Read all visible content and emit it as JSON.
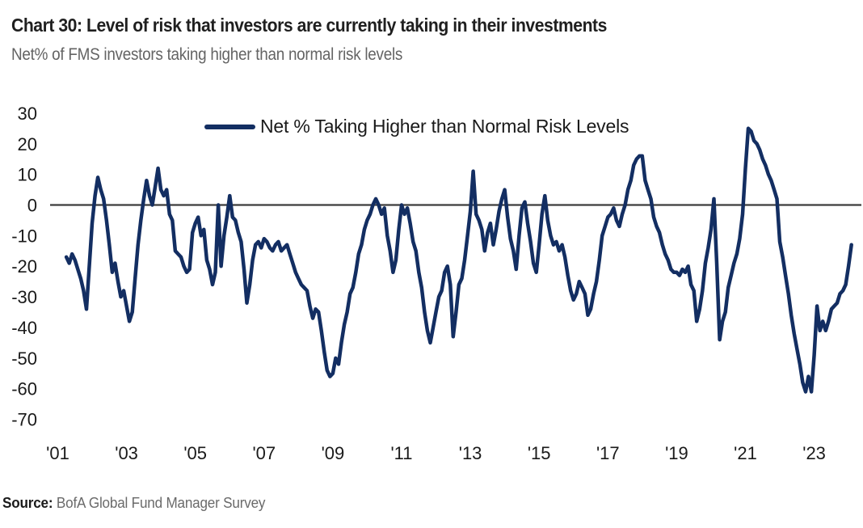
{
  "header": {
    "title": "Chart 30: Level of risk that investors are currently taking in their investments",
    "subtitle": "Net% of FMS investors taking higher than normal risk levels"
  },
  "legend": {
    "label": "Net % Taking Higher than Normal Risk Levels",
    "line_color": "#132E62"
  },
  "footer": {
    "source_label": "Source:",
    "source_text": " BofA Global Fund Manager Survey"
  },
  "chart_data": {
    "type": "line",
    "title": "Chart 30: Level of risk that investors are currently taking in their investments",
    "subtitle": "Net% of FMS investors taking higher than normal risk levels",
    "xlabel": "",
    "ylabel": "",
    "ylim": [
      -70,
      30
    ],
    "y_ticks": [
      30,
      20,
      10,
      0,
      -10,
      -20,
      -30,
      -40,
      -50,
      -60,
      -70
    ],
    "x_tick_labels": [
      "'01",
      "'03",
      "'05",
      "'07",
      "'09",
      "'11",
      "'13",
      "'15",
      "'17",
      "'19",
      "'21",
      "'23"
    ],
    "x_tick_years": [
      2001,
      2003,
      2005,
      2007,
      2009,
      2011,
      2013,
      2015,
      2017,
      2019,
      2021,
      2023
    ],
    "zero_line": true,
    "grid": false,
    "legend_position": "top-center",
    "zero_line_color": "#3C3C3C",
    "series": [
      {
        "name": "Net % Taking Higher than Normal Risk Levels",
        "color": "#132E62",
        "frequency": "monthly",
        "start": "2001-04",
        "end": "2024-02",
        "values": [
          -17,
          -19,
          -16,
          -18,
          -21,
          -24,
          -28,
          -34,
          -20,
          -6,
          3,
          9,
          5,
          2,
          -5,
          -13,
          -22,
          -19,
          -25,
          -30,
          -28,
          -33,
          -38,
          -35,
          -24,
          -13,
          -5,
          2,
          8,
          3,
          0,
          6,
          12,
          5,
          3,
          5,
          -3,
          -5,
          -15,
          -16,
          -17,
          -20,
          -22,
          -21,
          -9,
          -6,
          -4,
          -10,
          -8,
          -18,
          -21,
          -26,
          -22,
          0,
          -20,
          -10,
          -4,
          3,
          -4,
          -5,
          -9,
          -12,
          -21,
          -32,
          -26,
          -18,
          -13,
          -12,
          -14,
          -11,
          -12,
          -14,
          -15,
          -13,
          -12,
          -15,
          -14,
          -13,
          -16,
          -19,
          -22,
          -24,
          -26,
          -27,
          -28,
          -33,
          -37,
          -34,
          -35,
          -41,
          -48,
          -54,
          -56,
          -55,
          -50,
          -52,
          -45,
          -39,
          -35,
          -29,
          -27,
          -22,
          -16,
          -13,
          -8,
          -5,
          -3,
          0,
          2,
          0,
          -3,
          -1,
          -10,
          -15,
          -22,
          -18,
          -8,
          0,
          -3,
          -1,
          -6,
          -12,
          -15,
          -22,
          -27,
          -35,
          -41,
          -45,
          -40,
          -35,
          -30,
          -28,
          -22,
          -20,
          -26,
          -43,
          -35,
          -26,
          -24,
          -18,
          -10,
          -2,
          11,
          -3,
          -5,
          -8,
          -15,
          -9,
          -6,
          -13,
          -8,
          -2,
          2,
          5,
          -4,
          -11,
          -15,
          -21,
          -10,
          -1,
          1,
          -6,
          -12,
          -19,
          -22,
          -13,
          -3,
          3,
          -5,
          -10,
          -13,
          -12,
          -15,
          -13,
          -17,
          -23,
          -28,
          -31,
          -29,
          -25,
          -27,
          -29,
          -36,
          -34,
          -29,
          -25,
          -18,
          -10,
          -7,
          -4,
          -3,
          -1,
          -5,
          -7,
          -3,
          0,
          5,
          8,
          13,
          15,
          16,
          16,
          8,
          5,
          2,
          -4,
          -7,
          -9,
          -13,
          -16,
          -18,
          -21,
          -22,
          -22,
          -23,
          -21,
          -22,
          -20,
          -26,
          -28,
          -38,
          -34,
          -28,
          -19,
          -14,
          -8,
          2,
          -19,
          -44,
          -38,
          -35,
          -27,
          -23,
          -19,
          -16,
          -11,
          -3,
          12,
          25,
          24,
          21,
          20,
          18,
          15,
          13,
          10,
          8,
          5,
          2,
          -12,
          -17,
          -23,
          -29,
          -36,
          -42,
          -47,
          -52,
          -58,
          -61,
          -56,
          -61,
          -49,
          -33,
          -41,
          -38,
          -41,
          -38,
          -34,
          -33,
          -32,
          -29,
          -28,
          -26,
          -20,
          -13
        ]
      }
    ]
  }
}
